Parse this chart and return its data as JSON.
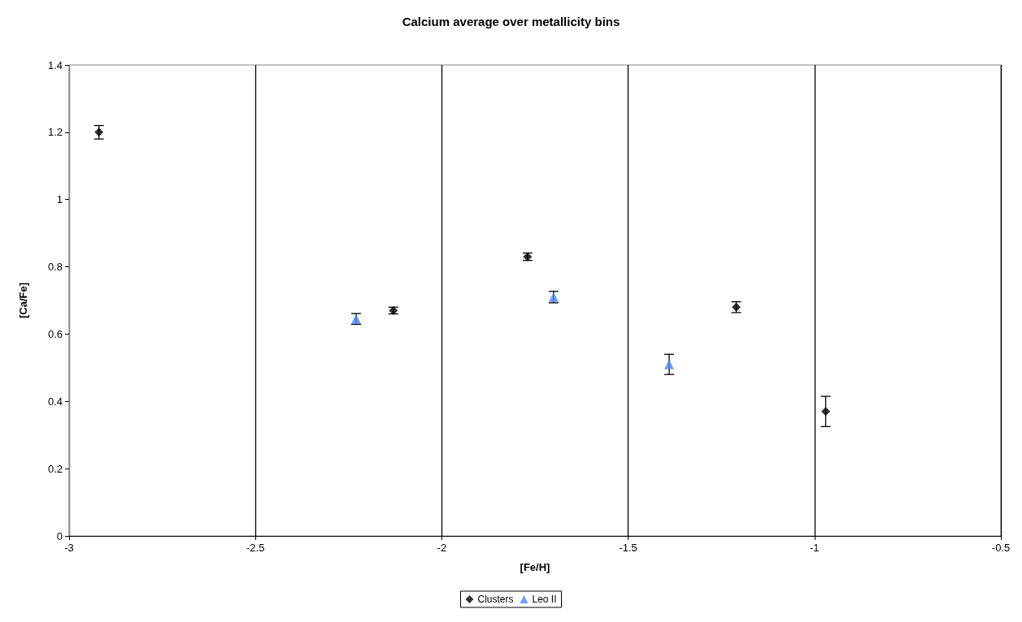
{
  "chart_data": {
    "type": "scatter",
    "title": "Calcium average over metallicity bins",
    "xlabel": "[Fe/H]",
    "ylabel": "[Ca/Fe]",
    "xlim": [
      -3,
      -0.5
    ],
    "xticks": [
      -3,
      -2.5,
      -2,
      -1.5,
      -1,
      -0.5
    ],
    "ylim": [
      0,
      1.4
    ],
    "yticks": [
      0,
      0.2,
      0.4,
      0.6,
      0.8,
      1,
      1.2,
      1.4
    ],
    "grid": "x",
    "legend": "bottom",
    "series": [
      {
        "name": "Clusters",
        "color": "#000000",
        "marker": "diamond",
        "x": [
          -2.92,
          -2.13,
          -1.77,
          -1.21,
          -0.97
        ],
        "values": [
          1.2,
          0.67,
          0.83,
          0.68,
          0.37
        ],
        "errors": [
          0.02,
          0.01,
          0.011,
          0.016,
          0.045
        ]
      },
      {
        "name": "Leo II",
        "color": "#4a86f5",
        "marker": "triangle",
        "x": [
          -2.23,
          -1.7,
          -1.39
        ],
        "values": [
          0.645,
          0.71,
          0.51
        ],
        "errors": [
          0.016,
          0.017,
          0.03
        ]
      }
    ]
  }
}
